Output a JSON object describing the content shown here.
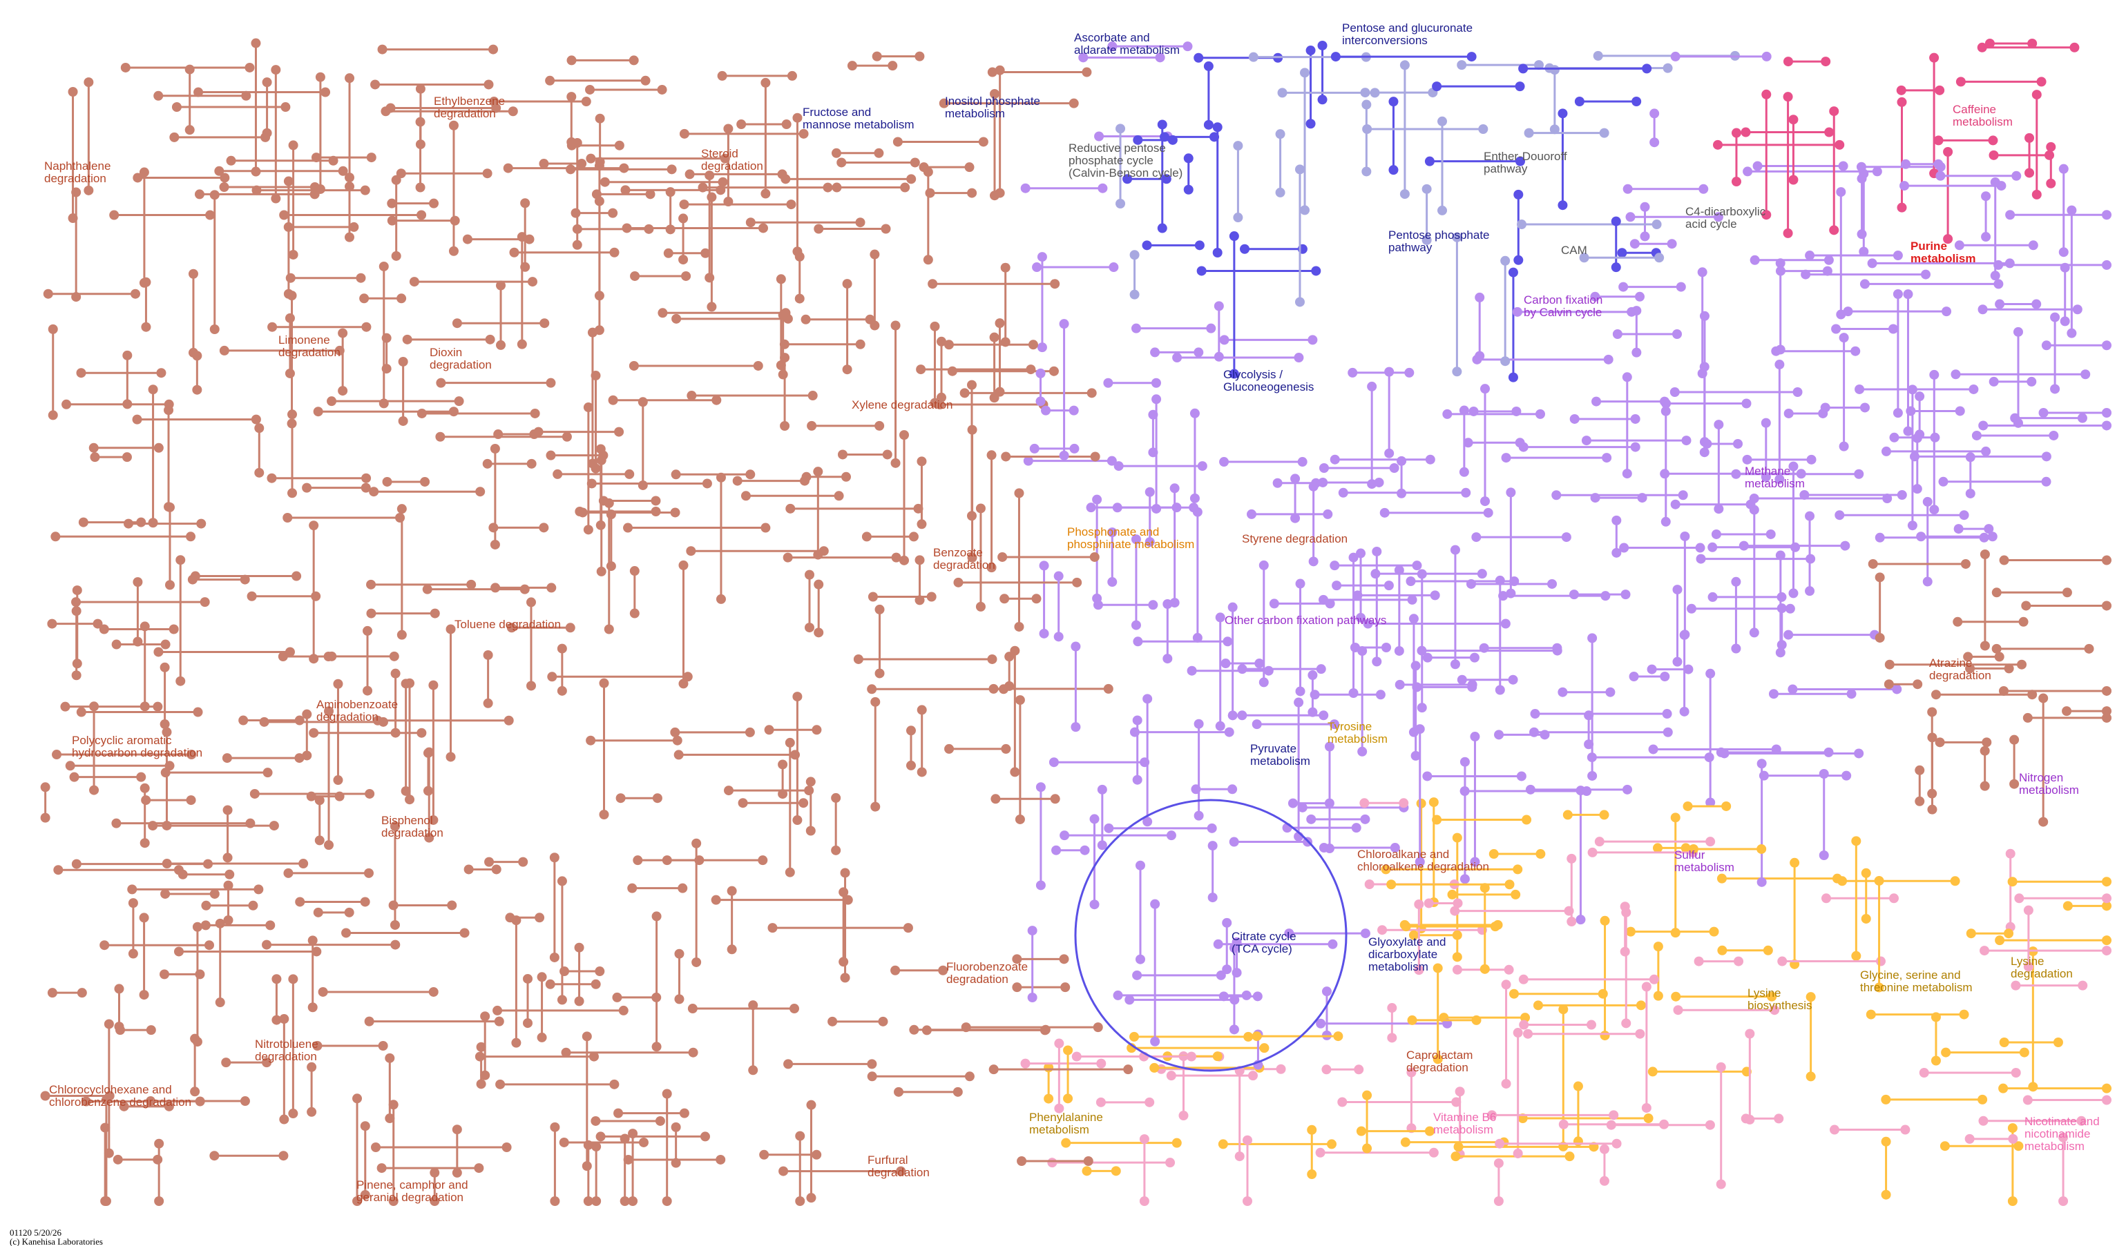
{
  "labels": [
    {
      "lines": [
        "Ethylbenzene",
        "degradation"
      ],
      "color": "#b5472a"
    },
    {
      "lines": [
        "Naphthalene",
        "degradation"
      ],
      "color": "#b5472a"
    },
    {
      "lines": [
        "Fructose and",
        "mannose metabolism"
      ],
      "color": "#1c1c8c"
    },
    {
      "lines": [
        "Steroid",
        "degradation"
      ],
      "color": "#b5472a"
    },
    {
      "lines": [
        "Ascorbate and",
        "aldarate metabolism"
      ],
      "color": "#1c1c8c"
    },
    {
      "lines": [
        "Pentose and glucuronate",
        "interconversions"
      ],
      "color": "#1c1c8c"
    },
    {
      "lines": [
        "Inositol phosphate",
        "metabolism"
      ],
      "color": "#1c1c8c"
    },
    {
      "lines": [
        "Reductive pentose",
        "phosphate cycle",
        "(Calvin-Benson cycle)"
      ],
      "color": "#555555"
    },
    {
      "lines": [
        "Enther-Douoroff",
        "pathway"
      ],
      "color": "#555555"
    },
    {
      "lines": [
        "Caffeine",
        "metabolism"
      ],
      "color": "#e0407a"
    },
    {
      "lines": [
        "C4-dicarboxylic",
        "acid cycle"
      ],
      "color": "#555555"
    },
    {
      "lines": [
        "CAM"
      ],
      "color": "#555555"
    },
    {
      "lines": [
        "Pentose phosphate",
        "pathway"
      ],
      "color": "#1c1c8c"
    },
    {
      "lines": [
        "Purine",
        "metabolism"
      ],
      "color": "#e02020"
    },
    {
      "lines": [
        "Carbon fixation",
        "by Calvin cycle"
      ],
      "color": "#9932cc"
    },
    {
      "lines": [
        "Limonene",
        "degradation"
      ],
      "color": "#b5472a"
    },
    {
      "lines": [
        "Dioxin",
        "degradation"
      ],
      "color": "#b5472a"
    },
    {
      "lines": [
        "Glycolysis /",
        "Gluconeogenesis"
      ],
      "color": "#1c1c8c"
    },
    {
      "lines": [
        "Xylene degradation"
      ],
      "color": "#b5472a"
    },
    {
      "lines": [
        "Methane",
        "metabolism"
      ],
      "color": "#9932cc"
    },
    {
      "lines": [
        "Phosphonate and",
        "phosphinate metabolism"
      ],
      "color": "#e08000"
    },
    {
      "lines": [
        "Styrene degradation"
      ],
      "color": "#b5472a"
    },
    {
      "lines": [
        "Benzoate",
        "degradation"
      ],
      "color": "#b5472a"
    },
    {
      "lines": [
        "Other carbon fixation pathways"
      ],
      "color": "#9932cc"
    },
    {
      "lines": [
        "Toluene degradation"
      ],
      "color": "#b5472a"
    },
    {
      "lines": [
        "Atrazine",
        "degradation"
      ],
      "color": "#b5472a"
    },
    {
      "lines": [
        "Aminobenzoate",
        "degradation"
      ],
      "color": "#b5472a"
    },
    {
      "lines": [
        "Tyrosine",
        "metabolism"
      ],
      "color": "#c89000"
    },
    {
      "lines": [
        "Polycyclic aromatic",
        "hydrocarbon degradation"
      ],
      "color": "#b5472a"
    },
    {
      "lines": [
        "Pyruvate",
        "metabolism"
      ],
      "color": "#1c1c8c"
    },
    {
      "lines": [
        "Nitrogen",
        "metabolism"
      ],
      "color": "#9932cc"
    },
    {
      "lines": [
        "Bisphenol",
        "degradation"
      ],
      "color": "#b5472a"
    },
    {
      "lines": [
        "Chloroalkane and",
        "chloroalkene degradation"
      ],
      "color": "#b5472a"
    },
    {
      "lines": [
        "Sulfur",
        "metabolism"
      ],
      "color": "#9932cc"
    },
    {
      "lines": [
        "Citrate cycle",
        "(TCA cycle)"
      ],
      "color": "#1c1c8c"
    },
    {
      "lines": [
        "Glyoxylate and",
        "dicarboxylate",
        "metabolism"
      ],
      "color": "#1c1c8c"
    },
    {
      "lines": [
        "Lysine",
        "degradation"
      ],
      "color": "#b08000"
    },
    {
      "lines": [
        "Fluorobenzoate",
        "degradation"
      ],
      "color": "#b5472a"
    },
    {
      "lines": [
        "Lysine",
        "biosynthesis"
      ],
      "color": "#b08000"
    },
    {
      "lines": [
        "Glycine, serine and",
        "threonine metabolism"
      ],
      "color": "#b08000"
    },
    {
      "lines": [
        "Nitrotoluene",
        "degradation"
      ],
      "color": "#b5472a"
    },
    {
      "lines": [
        "Caprolactam",
        "degradation"
      ],
      "color": "#b5472a"
    },
    {
      "lines": [
        "Chlorocyclohexane and",
        "chlorobenzene degradation"
      ],
      "color": "#b5472a"
    },
    {
      "lines": [
        "Phenylalanine",
        "metabolism"
      ],
      "color": "#b08000"
    },
    {
      "lines": [
        "Vitamine B6",
        "metabolism"
      ],
      "color": "#f06ab0"
    },
    {
      "lines": [
        "Nicotinate and",
        "nicotinamide",
        "metabolism"
      ],
      "color": "#f06ab0"
    },
    {
      "lines": [
        "Furfural",
        "degradation"
      ],
      "color": "#b5472a"
    },
    {
      "lines": [
        "Pinene, camphor and",
        "geraniol degradation"
      ],
      "color": "#b5472a"
    }
  ],
  "footer": {
    "lines": [
      "01120 5/20/26",
      "(c) Kanehisa Laboratories"
    ]
  }
}
